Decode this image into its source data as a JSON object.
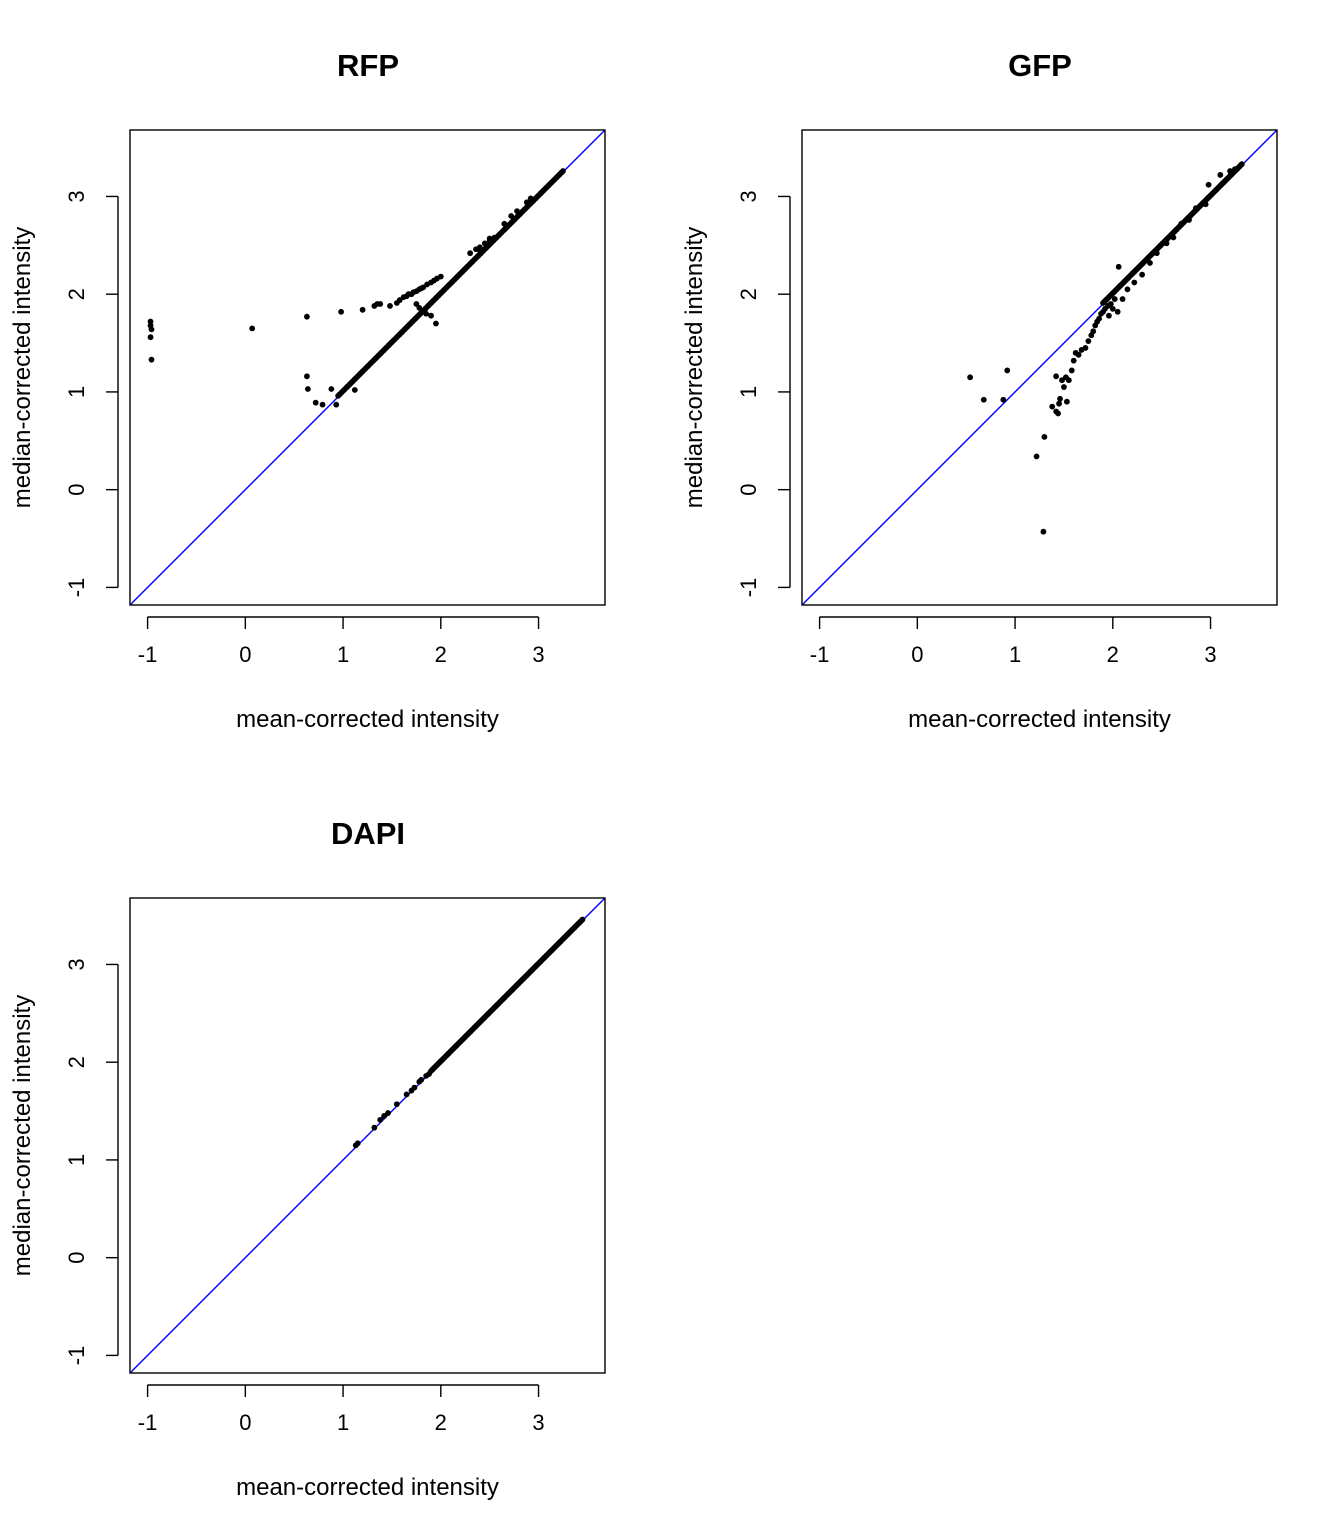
{
  "chart_data": [
    {
      "type": "scatter",
      "title": "RFP",
      "xlabel": "mean-corrected intensity",
      "ylabel": "median-corrected intensity",
      "xlim": [
        -1.18,
        3.68
      ],
      "ylim": [
        -1.18,
        3.68
      ],
      "xticks": [
        -1,
        0,
        1,
        2,
        3
      ],
      "yticks": [
        -1,
        0,
        1,
        2,
        3
      ],
      "reference_line": {
        "slope": 1,
        "intercept": 0,
        "color": "#0000ff"
      },
      "point_color": "#000000",
      "diagonal_band": {
        "from": 0.95,
        "to": 3.25,
        "count": 140
      },
      "points": [
        [
          -0.97,
          1.72
        ],
        [
          -0.97,
          1.68
        ],
        [
          -0.96,
          1.64
        ],
        [
          -0.97,
          1.56
        ],
        [
          -0.96,
          1.33
        ],
        [
          0.07,
          1.65
        ],
        [
          0.63,
          1.77
        ],
        [
          0.63,
          1.16
        ],
        [
          0.64,
          1.03
        ],
        [
          0.72,
          0.89
        ],
        [
          0.79,
          0.87
        ],
        [
          0.88,
          1.03
        ],
        [
          0.93,
          0.87
        ],
        [
          0.98,
          1.82
        ],
        [
          1.12,
          1.02
        ],
        [
          1.2,
          1.84
        ],
        [
          1.32,
          1.88
        ],
        [
          1.35,
          1.9
        ],
        [
          1.38,
          1.9
        ],
        [
          1.48,
          1.88
        ],
        [
          1.55,
          1.91
        ],
        [
          1.58,
          1.94
        ],
        [
          1.62,
          1.97
        ],
        [
          1.65,
          1.98
        ],
        [
          1.67,
          2.0
        ],
        [
          1.7,
          2.0
        ],
        [
          1.72,
          2.02
        ],
        [
          1.75,
          2.03
        ],
        [
          1.78,
          2.05
        ],
        [
          1.8,
          2.06
        ],
        [
          1.82,
          2.07
        ],
        [
          1.86,
          2.1
        ],
        [
          1.9,
          2.12
        ],
        [
          1.93,
          2.14
        ],
        [
          1.96,
          2.16
        ],
        [
          2.0,
          2.18
        ],
        [
          1.75,
          1.9
        ],
        [
          1.78,
          1.86
        ],
        [
          1.85,
          1.8
        ],
        [
          1.9,
          1.78
        ],
        [
          1.95,
          1.7
        ],
        [
          2.3,
          2.42
        ],
        [
          2.36,
          2.46
        ],
        [
          2.4,
          2.48
        ],
        [
          2.45,
          2.52
        ],
        [
          2.5,
          2.55
        ],
        [
          2.55,
          2.58
        ],
        [
          2.4,
          2.45
        ],
        [
          2.5,
          2.57
        ],
        [
          2.65,
          2.72
        ],
        [
          2.72,
          2.8
        ],
        [
          2.78,
          2.85
        ],
        [
          2.88,
          2.94
        ],
        [
          2.92,
          2.98
        ]
      ]
    },
    {
      "type": "scatter",
      "title": "GFP",
      "xlabel": "mean-corrected intensity",
      "ylabel": "median-corrected intensity",
      "xlim": [
        -1.18,
        3.68
      ],
      "ylim": [
        -1.18,
        3.68
      ],
      "xticks": [
        -1,
        0,
        1,
        2,
        3
      ],
      "yticks": [
        -1,
        0,
        1,
        2,
        3
      ],
      "reference_line": {
        "slope": 1,
        "intercept": 0,
        "color": "#0000ff"
      },
      "point_color": "#000000",
      "diagonal_band": {
        "from": 1.9,
        "to": 3.32,
        "count": 110
      },
      "points": [
        [
          0.54,
          1.15
        ],
        [
          0.68,
          0.92
        ],
        [
          0.88,
          0.92
        ],
        [
          0.92,
          1.22
        ],
        [
          1.22,
          0.34
        ],
        [
          1.29,
          -0.43
        ],
        [
          1.3,
          0.54
        ],
        [
          1.38,
          0.85
        ],
        [
          1.42,
          0.8
        ],
        [
          1.44,
          0.78
        ],
        [
          1.45,
          0.88
        ],
        [
          1.46,
          0.93
        ],
        [
          1.42,
          1.16
        ],
        [
          1.48,
          1.12
        ],
        [
          1.5,
          1.05
        ],
        [
          1.52,
          1.15
        ],
        [
          1.55,
          1.12
        ],
        [
          1.53,
          0.9
        ],
        [
          1.58,
          1.22
        ],
        [
          1.6,
          1.32
        ],
        [
          1.62,
          1.4
        ],
        [
          1.65,
          1.38
        ],
        [
          1.68,
          1.43
        ],
        [
          1.72,
          1.45
        ],
        [
          1.75,
          1.52
        ],
        [
          1.78,
          1.58
        ],
        [
          1.8,
          1.62
        ],
        [
          1.82,
          1.68
        ],
        [
          1.84,
          1.72
        ],
        [
          1.86,
          1.75
        ],
        [
          1.88,
          1.8
        ],
        [
          1.9,
          1.82
        ],
        [
          1.92,
          1.85
        ],
        [
          1.95,
          1.88
        ],
        [
          1.98,
          1.9
        ],
        [
          2.02,
          1.95
        ],
        [
          1.96,
          1.78
        ],
        [
          2.0,
          1.85
        ],
        [
          2.05,
          1.82
        ],
        [
          2.1,
          1.95
        ],
        [
          2.06,
          2.28
        ],
        [
          2.15,
          2.05
        ],
        [
          2.22,
          2.12
        ],
        [
          2.3,
          2.2
        ],
        [
          2.38,
          2.32
        ],
        [
          2.45,
          2.42
        ],
        [
          2.55,
          2.52
        ],
        [
          2.62,
          2.58
        ],
        [
          2.7,
          2.72
        ],
        [
          2.78,
          2.76
        ],
        [
          2.85,
          2.88
        ],
        [
          2.95,
          2.92
        ],
        [
          2.98,
          3.12
        ],
        [
          3.1,
          3.22
        ],
        [
          3.2,
          3.26
        ],
        [
          3.25,
          3.28
        ]
      ]
    },
    {
      "type": "scatter",
      "title": "DAPI",
      "xlabel": "mean-corrected intensity",
      "ylabel": "median-corrected intensity",
      "xlim": [
        -1.18,
        3.68
      ],
      "ylim": [
        -1.18,
        3.68
      ],
      "xticks": [
        -1,
        0,
        1,
        2,
        3
      ],
      "yticks": [
        -1,
        0,
        1,
        2,
        3
      ],
      "reference_line": {
        "slope": 1,
        "intercept": 0,
        "color": "#0000ff"
      },
      "point_color": "#000000",
      "diagonal_band": {
        "from": 1.9,
        "to": 3.45,
        "count": 120
      },
      "points": [
        [
          1.13,
          1.15
        ],
        [
          1.15,
          1.17
        ],
        [
          1.32,
          1.33
        ],
        [
          1.38,
          1.41
        ],
        [
          1.42,
          1.45
        ],
        [
          1.46,
          1.48
        ],
        [
          1.55,
          1.57
        ],
        [
          1.65,
          1.67
        ],
        [
          1.7,
          1.71
        ],
        [
          1.73,
          1.74
        ],
        [
          1.78,
          1.8
        ],
        [
          1.8,
          1.82
        ],
        [
          1.85,
          1.86
        ],
        [
          1.88,
          1.88
        ]
      ]
    }
  ]
}
